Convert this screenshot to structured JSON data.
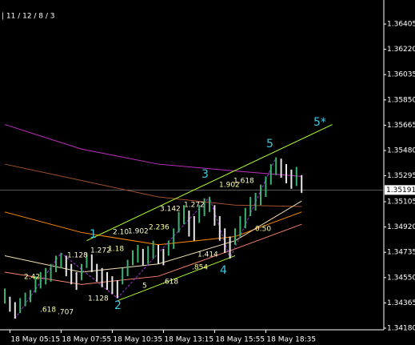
{
  "chart_data": {
    "type": "hilo",
    "header": "| 11 / 12 / 8 / 3",
    "categories": [
      null,
      "18 May 05:15",
      null,
      null,
      null,
      null,
      null,
      null,
      null,
      null,
      null,
      "18 May 07:55",
      null,
      null,
      null,
      null,
      null,
      null,
      null,
      null,
      null,
      "18 May 10:35",
      null,
      null,
      null,
      null,
      null,
      null,
      null,
      null,
      null,
      "18 May 13:15",
      null,
      null,
      null,
      null,
      null,
      null,
      null,
      null,
      null,
      "18 May 15:55",
      null,
      null,
      null,
      null,
      null,
      null,
      null,
      null,
      null,
      "18 May 18:35",
      null,
      null,
      null,
      null,
      null,
      null,
      null
    ],
    "high": [
      1.3447,
      1.3441,
      1.3437,
      1.344,
      1.3444,
      1.3446,
      1.3456,
      1.3459,
      1.3462,
      1.3465,
      1.3471,
      1.3473,
      1.3471,
      1.3465,
      1.3459,
      1.3465,
      1.3473,
      1.3472,
      1.3465,
      1.3462,
      1.3459,
      1.3456,
      1.3453,
      1.3462,
      1.3468,
      1.3475,
      1.3479,
      1.3476,
      1.3478,
      1.3482,
      1.3479,
      1.3476,
      1.3482,
      1.3491,
      1.3503,
      1.3508,
      1.3504,
      1.35,
      1.3508,
      1.3513,
      1.3514,
      1.3508,
      1.35,
      1.3491,
      1.3485,
      1.3491,
      1.35,
      1.3506,
      1.3514,
      1.3517,
      1.3523,
      1.3529,
      1.3538,
      1.3543,
      1.3542,
      1.3538,
      1.3534,
      1.3536,
      1.353
    ],
    "low": [
      1.3436,
      1.343,
      1.3425,
      1.3429,
      1.3434,
      1.3437,
      1.3444,
      1.3447,
      1.345,
      1.3452,
      1.3459,
      1.3462,
      1.3456,
      1.345,
      1.3446,
      1.3453,
      1.3462,
      1.3459,
      1.3452,
      1.3448,
      1.3446,
      1.3443,
      1.344,
      1.345,
      1.3456,
      1.3464,
      1.3466,
      1.3464,
      1.3465,
      1.3469,
      1.3465,
      1.3464,
      1.3471,
      1.3476,
      1.3488,
      1.3494,
      1.3485,
      1.3482,
      1.3495,
      1.35,
      1.3503,
      1.3493,
      1.3482,
      1.3473,
      1.3469,
      1.3479,
      1.3485,
      1.3491,
      1.35,
      1.3504,
      1.3508,
      1.3514,
      1.3523,
      1.353,
      1.3528,
      1.3524,
      1.352,
      1.3522,
      1.3517
    ],
    "color_up": "#3cb371",
    "color_down": "#e8e8e8",
    "lines": [
      {
        "color": "#c030c0",
        "x": [
          0,
          15,
          30,
          45,
          58
        ],
        "values": [
          1.3567,
          1.3549,
          1.3538,
          1.3533,
          1.3529
        ]
      },
      {
        "color": "#a0522d",
        "x": [
          0,
          15,
          30,
          45,
          58
        ],
        "values": [
          1.3538,
          1.3526,
          1.3514,
          1.3508,
          1.3507
        ]
      },
      {
        "color": "#ff8c00",
        "x": [
          0,
          15,
          30,
          45,
          58
        ],
        "values": [
          1.3503,
          1.3488,
          1.3479,
          1.3485,
          1.3503
        ]
      },
      {
        "color": "#f5deb3",
        "x": [
          0,
          15,
          30,
          45,
          58
        ],
        "values": [
          1.3471,
          1.3459,
          1.3465,
          1.3482,
          1.3511
        ]
      },
      {
        "color": "#fa8072",
        "x": [
          0,
          15,
          30,
          45,
          58
        ],
        "values": [
          1.3459,
          1.345,
          1.3456,
          1.3476,
          1.3494
        ]
      },
      {
        "color": "#adff2f",
        "x": [
          16,
          64
        ],
        "values": [
          1.3482,
          1.3567
        ]
      },
      {
        "color": "#adff2f",
        "x": [
          22,
          45
        ],
        "values": [
          1.3438,
          1.3471
        ]
      },
      {
        "color": "#9932cc",
        "x": [
          2,
          11,
          22,
          40,
          44,
          53
        ],
        "values": [
          1.3425,
          1.3473,
          1.344,
          1.3514,
          1.3469,
          1.3543
        ]
      }
    ],
    "current_price": 1.35191,
    "waves": [
      "1",
      "2",
      "3",
      "4",
      "5",
      "5*"
    ],
    "annotations": [
      "2.42",
      "1.128",
      "1.272",
      "1.18",
      "2.10",
      "1.902",
      "2.236",
      "3.142",
      "1.272",
      "1.902",
      "1.618",
      "1.414",
      ".854",
      "5",
      ".618",
      ".618",
      ".707",
      "1.128",
      "0.50"
    ],
    "xlim": [
      -0.9375,
      74.0625
    ],
    "ylim": [
      1.34168,
      1.36581
    ],
    "yticks": [
      1.36405,
      {
        "value": 1.3622,
        "label": "1.36220"
      },
      1.36035,
      {
        "value": 1.3585,
        "label": "1.35850"
      },
      1.35665,
      {
        "value": 1.3548,
        "label": "1.35480"
      },
      1.35295,
      1.35105,
      {
        "value": 1.3492,
        "label": "1.34920"
      },
      1.34735,
      {
        "value": 1.3455,
        "label": "1.34550"
      },
      1.34365,
      {
        "value": 1.3418,
        "label": "1.34180"
      }
    ]
  }
}
